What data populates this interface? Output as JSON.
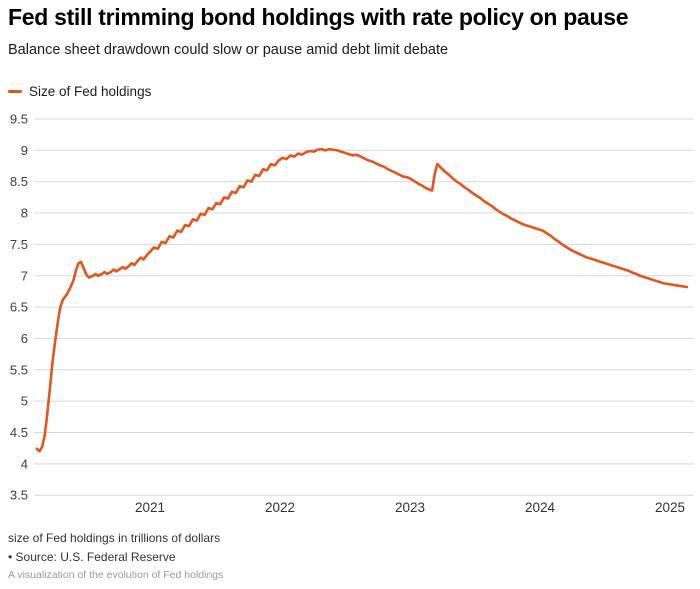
{
  "header": {
    "title": "Fed still trimming bond holdings with rate policy on pause",
    "subtitle": "Balance sheet drawdown could slow or pause amid debt limit debate"
  },
  "legend": {
    "label": "Size of Fed holdings",
    "color": "#e4561c"
  },
  "footer": {
    "note": "size of Fed holdings in trillions of dollars",
    "source": "• Source: U.S. Federal Reserve",
    "caption": "A visualization of the evolution of Fed holdings"
  },
  "chart_data": {
    "type": "line",
    "title": "Fed still trimming bond holdings with rate policy on pause",
    "subtitle": "Balance sheet drawdown could slow or pause amid debt limit debate",
    "xlabel": "",
    "ylabel": "size of Fed holdings in trillions of dollars",
    "unit": "trillions of USD",
    "grid": "horizontal",
    "legend_position": "top-left",
    "x_ticks": [
      2021,
      2022,
      2023,
      2024,
      2025
    ],
    "y_ticks": [
      9.5,
      9,
      8.5,
      8,
      7.5,
      7,
      6.5,
      6,
      5.5,
      5,
      4.5,
      4,
      3.5
    ],
    "ylim": [
      3.5,
      9.5
    ],
    "xlim": [
      2020.1,
      2025.2
    ],
    "series": [
      {
        "name": "Size of Fed holdings",
        "color": "#e4561c",
        "points": [
          [
            2020.13,
            4.24
          ],
          [
            2020.15,
            4.2
          ],
          [
            2020.17,
            4.27
          ],
          [
            2020.19,
            4.45
          ],
          [
            2020.21,
            4.8
          ],
          [
            2020.23,
            5.2
          ],
          [
            2020.25,
            5.62
          ],
          [
            2020.27,
            5.95
          ],
          [
            2020.29,
            6.25
          ],
          [
            2020.31,
            6.5
          ],
          [
            2020.33,
            6.62
          ],
          [
            2020.36,
            6.7
          ],
          [
            2020.38,
            6.78
          ],
          [
            2020.41,
            6.92
          ],
          [
            2020.43,
            7.08
          ],
          [
            2020.45,
            7.2
          ],
          [
            2020.47,
            7.22
          ],
          [
            2020.49,
            7.12
          ],
          [
            2020.51,
            7.02
          ],
          [
            2020.53,
            6.97
          ],
          [
            2020.56,
            7.0
          ],
          [
            2020.58,
            7.03
          ],
          [
            2020.6,
            7.0
          ],
          [
            2020.63,
            7.03
          ],
          [
            2020.65,
            7.06
          ],
          [
            2020.67,
            7.03
          ],
          [
            2020.7,
            7.06
          ],
          [
            2020.72,
            7.1
          ],
          [
            2020.74,
            7.07
          ],
          [
            2020.77,
            7.11
          ],
          [
            2020.79,
            7.14
          ],
          [
            2020.81,
            7.11
          ],
          [
            2020.84,
            7.16
          ],
          [
            2020.86,
            7.2
          ],
          [
            2020.88,
            7.17
          ],
          [
            2020.91,
            7.25
          ],
          [
            2020.93,
            7.29
          ],
          [
            2020.95,
            7.26
          ],
          [
            2020.98,
            7.34
          ],
          [
            2021.0,
            7.38
          ],
          [
            2021.03,
            7.45
          ],
          [
            2021.06,
            7.43
          ],
          [
            2021.09,
            7.54
          ],
          [
            2021.12,
            7.52
          ],
          [
            2021.15,
            7.63
          ],
          [
            2021.18,
            7.61
          ],
          [
            2021.21,
            7.72
          ],
          [
            2021.24,
            7.7
          ],
          [
            2021.27,
            7.81
          ],
          [
            2021.3,
            7.79
          ],
          [
            2021.33,
            7.9
          ],
          [
            2021.36,
            7.88
          ],
          [
            2021.39,
            7.99
          ],
          [
            2021.42,
            7.97
          ],
          [
            2021.45,
            8.08
          ],
          [
            2021.48,
            8.06
          ],
          [
            2021.51,
            8.16
          ],
          [
            2021.54,
            8.14
          ],
          [
            2021.57,
            8.25
          ],
          [
            2021.6,
            8.23
          ],
          [
            2021.63,
            8.34
          ],
          [
            2021.66,
            8.32
          ],
          [
            2021.69,
            8.43
          ],
          [
            2021.72,
            8.41
          ],
          [
            2021.75,
            8.52
          ],
          [
            2021.78,
            8.5
          ],
          [
            2021.81,
            8.61
          ],
          [
            2021.84,
            8.59
          ],
          [
            2021.87,
            8.7
          ],
          [
            2021.9,
            8.68
          ],
          [
            2021.93,
            8.78
          ],
          [
            2021.96,
            8.76
          ],
          [
            2021.99,
            8.84
          ],
          [
            2022.02,
            8.88
          ],
          [
            2022.05,
            8.86
          ],
          [
            2022.08,
            8.92
          ],
          [
            2022.11,
            8.9
          ],
          [
            2022.14,
            8.95
          ],
          [
            2022.17,
            8.93
          ],
          [
            2022.2,
            8.97
          ],
          [
            2022.23,
            8.99
          ],
          [
            2022.26,
            8.98
          ],
          [
            2022.29,
            9.01
          ],
          [
            2022.32,
            9.02
          ],
          [
            2022.35,
            9.0
          ],
          [
            2022.38,
            9.02
          ],
          [
            2022.41,
            9.01
          ],
          [
            2022.44,
            9.0
          ],
          [
            2022.47,
            8.98
          ],
          [
            2022.5,
            8.96
          ],
          [
            2022.53,
            8.94
          ],
          [
            2022.56,
            8.92
          ],
          [
            2022.59,
            8.93
          ],
          [
            2022.62,
            8.9
          ],
          [
            2022.65,
            8.87
          ],
          [
            2022.68,
            8.84
          ],
          [
            2022.71,
            8.82
          ],
          [
            2022.74,
            8.79
          ],
          [
            2022.77,
            8.76
          ],
          [
            2022.8,
            8.74
          ],
          [
            2022.83,
            8.7
          ],
          [
            2022.86,
            8.67
          ],
          [
            2022.89,
            8.64
          ],
          [
            2022.92,
            8.61
          ],
          [
            2022.95,
            8.58
          ],
          [
            2022.98,
            8.57
          ],
          [
            2023.01,
            8.54
          ],
          [
            2023.04,
            8.5
          ],
          [
            2023.07,
            8.46
          ],
          [
            2023.1,
            8.43
          ],
          [
            2023.13,
            8.39
          ],
          [
            2023.17,
            8.36
          ],
          [
            2023.19,
            8.62
          ],
          [
            2023.21,
            8.78
          ],
          [
            2023.24,
            8.72
          ],
          [
            2023.27,
            8.66
          ],
          [
            2023.3,
            8.61
          ],
          [
            2023.33,
            8.55
          ],
          [
            2023.36,
            8.5
          ],
          [
            2023.39,
            8.46
          ],
          [
            2023.42,
            8.41
          ],
          [
            2023.45,
            8.37
          ],
          [
            2023.48,
            8.32
          ],
          [
            2023.51,
            8.28
          ],
          [
            2023.54,
            8.24
          ],
          [
            2023.57,
            8.19
          ],
          [
            2023.6,
            8.15
          ],
          [
            2023.63,
            8.11
          ],
          [
            2023.66,
            8.06
          ],
          [
            2023.69,
            8.02
          ],
          [
            2023.72,
            7.98
          ],
          [
            2023.75,
            7.95
          ],
          [
            2023.78,
            7.91
          ],
          [
            2023.81,
            7.88
          ],
          [
            2023.84,
            7.85
          ],
          [
            2023.87,
            7.82
          ],
          [
            2023.9,
            7.8
          ],
          [
            2023.93,
            7.78
          ],
          [
            2023.96,
            7.76
          ],
          [
            2023.99,
            7.74
          ],
          [
            2024.02,
            7.72
          ],
          [
            2024.05,
            7.68
          ],
          [
            2024.08,
            7.64
          ],
          [
            2024.11,
            7.59
          ],
          [
            2024.14,
            7.55
          ],
          [
            2024.17,
            7.5
          ],
          [
            2024.2,
            7.46
          ],
          [
            2024.23,
            7.42
          ],
          [
            2024.26,
            7.39
          ],
          [
            2024.29,
            7.36
          ],
          [
            2024.32,
            7.33
          ],
          [
            2024.35,
            7.3
          ],
          [
            2024.38,
            7.28
          ],
          [
            2024.41,
            7.26
          ],
          [
            2024.44,
            7.24
          ],
          [
            2024.47,
            7.22
          ],
          [
            2024.5,
            7.2
          ],
          [
            2024.53,
            7.18
          ],
          [
            2024.56,
            7.16
          ],
          [
            2024.59,
            7.14
          ],
          [
            2024.62,
            7.12
          ],
          [
            2024.65,
            7.1
          ],
          [
            2024.68,
            7.08
          ],
          [
            2024.71,
            7.05
          ],
          [
            2024.74,
            7.03
          ],
          [
            2024.77,
            7.0
          ],
          [
            2024.8,
            6.98
          ],
          [
            2024.83,
            6.96
          ],
          [
            2024.86,
            6.94
          ],
          [
            2024.89,
            6.92
          ],
          [
            2024.92,
            6.9
          ],
          [
            2024.95,
            6.88
          ],
          [
            2024.98,
            6.87
          ],
          [
            2025.01,
            6.86
          ],
          [
            2025.04,
            6.85
          ],
          [
            2025.07,
            6.84
          ],
          [
            2025.1,
            6.83
          ],
          [
            2025.13,
            6.82
          ]
        ]
      }
    ]
  }
}
